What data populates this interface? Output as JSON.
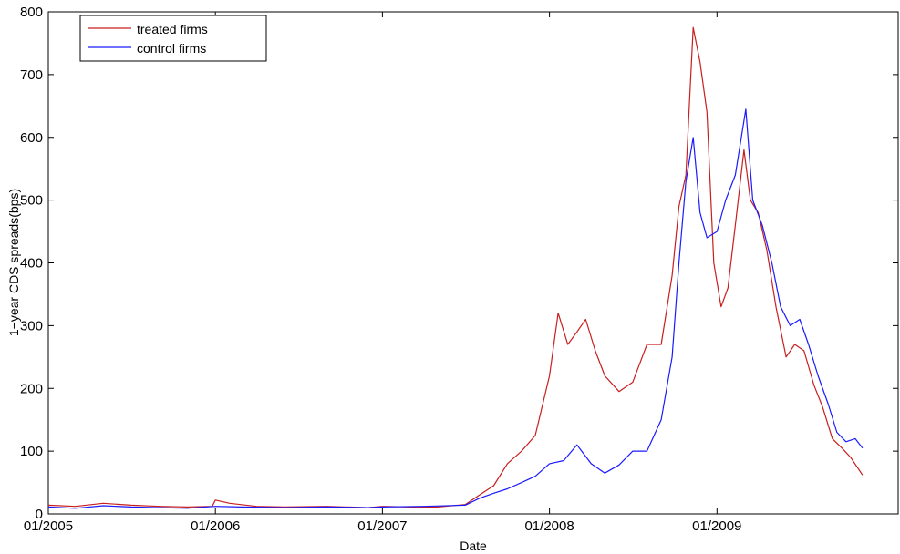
{
  "chart_data": {
    "type": "line",
    "title": "",
    "xlabel": "Date",
    "ylabel": "1−year CDS spreads(bps)",
    "x_ticks": [
      "01/2005",
      "01/2006",
      "01/2007",
      "01/2008",
      "01/2009"
    ],
    "x_range": [
      "2005-01",
      "2009-11"
    ],
    "ylim": [
      0,
      800
    ],
    "y_ticks": [
      "0",
      "100",
      "200",
      "300",
      "400",
      "500",
      "600",
      "700",
      "800"
    ],
    "grid": false,
    "legend": "top-left",
    "colors": {
      "treated": "#c81e1e",
      "control": "#1a1aff"
    },
    "series": [
      {
        "name": "treated firms",
        "color": "#c81e1e",
        "points": [
          [
            "2005-01-01",
            14
          ],
          [
            "2005-03-01",
            12
          ],
          [
            "2005-05-01",
            17
          ],
          [
            "2005-07-01",
            14
          ],
          [
            "2005-09-01",
            12
          ],
          [
            "2005-11-01",
            11
          ],
          [
            "2005-12-25",
            12
          ],
          [
            "2006-01-01",
            22
          ],
          [
            "2006-02-01",
            17
          ],
          [
            "2006-04-01",
            12
          ],
          [
            "2006-06-01",
            11
          ],
          [
            "2006-09-01",
            12
          ],
          [
            "2006-12-01",
            10
          ],
          [
            "2007-01-01",
            12
          ],
          [
            "2007-03-01",
            11
          ],
          [
            "2007-05-01",
            11
          ],
          [
            "2007-07-01",
            15
          ],
          [
            "2007-08-01",
            30
          ],
          [
            "2007-09-01",
            45
          ],
          [
            "2007-10-01",
            80
          ],
          [
            "2007-11-01",
            100
          ],
          [
            "2007-12-01",
            125
          ],
          [
            "2008-01-01",
            220
          ],
          [
            "2008-01-20",
            320
          ],
          [
            "2008-02-10",
            270
          ],
          [
            "2008-03-01",
            290
          ],
          [
            "2008-03-20",
            310
          ],
          [
            "2008-04-10",
            260
          ],
          [
            "2008-05-01",
            220
          ],
          [
            "2008-06-01",
            195
          ],
          [
            "2008-07-01",
            210
          ],
          [
            "2008-08-01",
            270
          ],
          [
            "2008-09-01",
            270
          ],
          [
            "2008-09-25",
            380
          ],
          [
            "2008-10-10",
            490
          ],
          [
            "2008-10-25",
            540
          ],
          [
            "2008-11-10",
            775
          ],
          [
            "2008-11-25",
            720
          ],
          [
            "2008-12-10",
            640
          ],
          [
            "2008-12-25",
            400
          ],
          [
            "2009-01-10",
            330
          ],
          [
            "2009-01-25",
            360
          ],
          [
            "2009-02-10",
            460
          ],
          [
            "2009-03-01",
            580
          ],
          [
            "2009-03-15",
            500
          ],
          [
            "2009-04-01",
            480
          ],
          [
            "2009-04-20",
            420
          ],
          [
            "2009-05-10",
            330
          ],
          [
            "2009-06-01",
            250
          ],
          [
            "2009-06-20",
            270
          ],
          [
            "2009-07-10",
            260
          ],
          [
            "2009-08-01",
            205
          ],
          [
            "2009-08-20",
            170
          ],
          [
            "2009-09-10",
            120
          ],
          [
            "2009-10-01",
            105
          ],
          [
            "2009-10-20",
            90
          ],
          [
            "2009-11-15",
            62
          ]
        ]
      },
      {
        "name": "control firms",
        "color": "#1a1aff",
        "points": [
          [
            "2005-01-01",
            11
          ],
          [
            "2005-03-01",
            9
          ],
          [
            "2005-05-01",
            13
          ],
          [
            "2005-07-01",
            11
          ],
          [
            "2005-09-01",
            10
          ],
          [
            "2005-11-01",
            9
          ],
          [
            "2006-01-01",
            12
          ],
          [
            "2006-03-01",
            11
          ],
          [
            "2006-06-01",
            10
          ],
          [
            "2006-09-01",
            11
          ],
          [
            "2006-12-01",
            10
          ],
          [
            "2007-01-01",
            11
          ],
          [
            "2007-04-01",
            12
          ],
          [
            "2007-07-01",
            14
          ],
          [
            "2007-08-01",
            25
          ],
          [
            "2007-09-01",
            33
          ],
          [
            "2007-10-01",
            40
          ],
          [
            "2007-11-01",
            50
          ],
          [
            "2007-12-01",
            60
          ],
          [
            "2008-01-01",
            80
          ],
          [
            "2008-02-01",
            85
          ],
          [
            "2008-03-01",
            110
          ],
          [
            "2008-04-01",
            80
          ],
          [
            "2008-05-01",
            65
          ],
          [
            "2008-06-01",
            78
          ],
          [
            "2008-07-01",
            100
          ],
          [
            "2008-08-01",
            100
          ],
          [
            "2008-09-01",
            150
          ],
          [
            "2008-09-25",
            250
          ],
          [
            "2008-10-10",
            400
          ],
          [
            "2008-10-25",
            530
          ],
          [
            "2008-11-10",
            600
          ],
          [
            "2008-11-25",
            480
          ],
          [
            "2008-12-10",
            440
          ],
          [
            "2009-01-01",
            450
          ],
          [
            "2009-01-20",
            500
          ],
          [
            "2009-02-10",
            540
          ],
          [
            "2009-03-05",
            645
          ],
          [
            "2009-03-20",
            500
          ],
          [
            "2009-04-10",
            460
          ],
          [
            "2009-05-01",
            400
          ],
          [
            "2009-05-20",
            330
          ],
          [
            "2009-06-10",
            300
          ],
          [
            "2009-07-01",
            310
          ],
          [
            "2009-07-20",
            270
          ],
          [
            "2009-08-10",
            220
          ],
          [
            "2009-09-01",
            175
          ],
          [
            "2009-09-20",
            130
          ],
          [
            "2009-10-10",
            115
          ],
          [
            "2009-10-30",
            120
          ],
          [
            "2009-11-15",
            105
          ]
        ]
      }
    ]
  }
}
